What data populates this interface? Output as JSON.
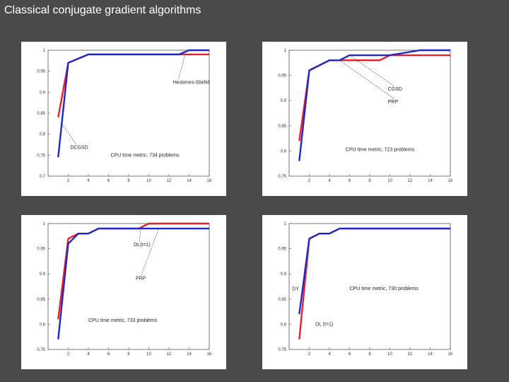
{
  "slide_title": "Classical conjugate gradient algorithms",
  "colors": {
    "series_a": "#e8202a",
    "series_b": "#2028c8"
  },
  "chart_data": [
    {
      "type": "line",
      "xticks": [
        2,
        4,
        6,
        8,
        10,
        12,
        14,
        16
      ],
      "yticks": [
        0.7,
        0.75,
        0.8,
        0.85,
        0.9,
        0.95,
        1
      ],
      "ytick_labels": [
        "0.7",
        "0.75",
        "0.8",
        "0.85",
        "0.9",
        "0.95",
        "1"
      ],
      "xlim": [
        0,
        16
      ],
      "ylim": [
        0.7,
        1.0
      ],
      "grid": false,
      "series": [
        {
          "color": "red",
          "x": [
            1,
            2,
            4,
            14,
            16
          ],
          "y": [
            0.84,
            0.97,
            0.99,
            0.99,
            0.99
          ]
        },
        {
          "color": "blue",
          "x": [
            1,
            2,
            4,
            13,
            14,
            16
          ],
          "y": [
            0.745,
            0.97,
            0.99,
            0.99,
            1.0,
            1.0
          ]
        }
      ],
      "annotations": [
        {
          "text": "Hestenes-Stiefel",
          "x": 12.4,
          "y": 0.92,
          "arrow_to": [
            13.6,
            0.99
          ]
        },
        {
          "text": "DCGSD",
          "x": 2.2,
          "y": 0.765,
          "arrow_to": [
            1.2,
            0.83
          ]
        },
        {
          "text": "CPU time metric, 734 problems",
          "x": 6.2,
          "y": 0.746
        }
      ]
    },
    {
      "type": "line",
      "xticks": [
        2,
        4,
        6,
        8,
        10,
        12,
        14,
        16
      ],
      "yticks": [
        0.75,
        0.8,
        0.85,
        0.9,
        0.95,
        1
      ],
      "ytick_labels": [
        "0.75",
        "0.8",
        "0.85",
        "0.9",
        "0.95",
        "1"
      ],
      "xlim": [
        0,
        16
      ],
      "ylim": [
        0.75,
        1.0
      ],
      "grid": false,
      "series": [
        {
          "color": "red",
          "x": [
            1,
            2,
            4,
            5,
            9,
            10,
            16
          ],
          "y": [
            0.82,
            0.96,
            0.98,
            0.98,
            0.98,
            0.99,
            0.99
          ]
        },
        {
          "color": "blue",
          "x": [
            1,
            2,
            4,
            5,
            6,
            10,
            13,
            16
          ],
          "y": [
            0.78,
            0.96,
            0.98,
            0.98,
            0.99,
            0.99,
            1.0,
            1.0
          ]
        }
      ],
      "annotations": [
        {
          "text": "CGSD",
          "x": 9.8,
          "y": 0.92,
          "arrow_to": [
            6.0,
            0.99
          ]
        },
        {
          "text": "PRP",
          "x": 9.8,
          "y": 0.895,
          "arrow_to": [
            5.0,
            0.98
          ]
        },
        {
          "text": "CPU time metric, 723 problems",
          "x": 5.6,
          "y": 0.8
        }
      ]
    },
    {
      "type": "line",
      "xticks": [
        2,
        4,
        6,
        8,
        10,
        12,
        14,
        16
      ],
      "yticks": [
        0.75,
        0.8,
        0.85,
        0.9,
        0.95,
        1
      ],
      "ytick_labels": [
        "0.75",
        "0.8",
        "0.85",
        "0.9",
        "0.95",
        "1"
      ],
      "xlim": [
        0,
        16
      ],
      "ylim": [
        0.75,
        1.0
      ],
      "grid": false,
      "series": [
        {
          "color": "red",
          "x": [
            1,
            2,
            3,
            4,
            5,
            9,
            10,
            16
          ],
          "y": [
            0.81,
            0.97,
            0.98,
            0.98,
            0.99,
            0.99,
            1.0,
            1.0
          ]
        },
        {
          "color": "blue",
          "x": [
            1,
            2,
            3,
            4,
            5,
            16
          ],
          "y": [
            0.77,
            0.96,
            0.98,
            0.98,
            0.99,
            0.99
          ]
        }
      ],
      "annotations": [
        {
          "text": "DL(t=1)",
          "x": 8.5,
          "y": 0.955,
          "arrow_to": [
            9.2,
            0.99
          ]
        },
        {
          "text": "PRP",
          "x": 8.7,
          "y": 0.888,
          "arrow_to": [
            11.0,
            0.99
          ]
        },
        {
          "text": "CPU time metric, 733 problems",
          "x": 4.0,
          "y": 0.805
        }
      ]
    },
    {
      "type": "line",
      "xticks": [
        2,
        4,
        6,
        8,
        10,
        12,
        14,
        16
      ],
      "yticks": [
        0.75,
        0.8,
        0.85,
        0.9,
        0.95,
        1
      ],
      "ytick_labels": [
        "0.75",
        "0.8",
        "0.85",
        "0.9",
        "0.95",
        "1"
      ],
      "xlim": [
        0,
        16
      ],
      "ylim": [
        0.75,
        1.0
      ],
      "grid": false,
      "series": [
        {
          "color": "red",
          "x": [
            1,
            2,
            3,
            4,
            5,
            16
          ],
          "y": [
            0.77,
            0.97,
            0.98,
            0.98,
            0.99,
            0.99
          ]
        },
        {
          "color": "blue",
          "x": [
            1,
            2,
            3,
            4,
            5,
            16
          ],
          "y": [
            0.82,
            0.97,
            0.98,
            0.98,
            0.99,
            0.99
          ]
        }
      ],
      "annotations": [
        {
          "text": "DY",
          "x": 0.3,
          "y": 0.867
        },
        {
          "text": "DL (t=1)",
          "x": 2.6,
          "y": 0.797
        },
        {
          "text": "CPU time metric, 730 problems",
          "x": 6.0,
          "y": 0.868
        }
      ]
    }
  ]
}
